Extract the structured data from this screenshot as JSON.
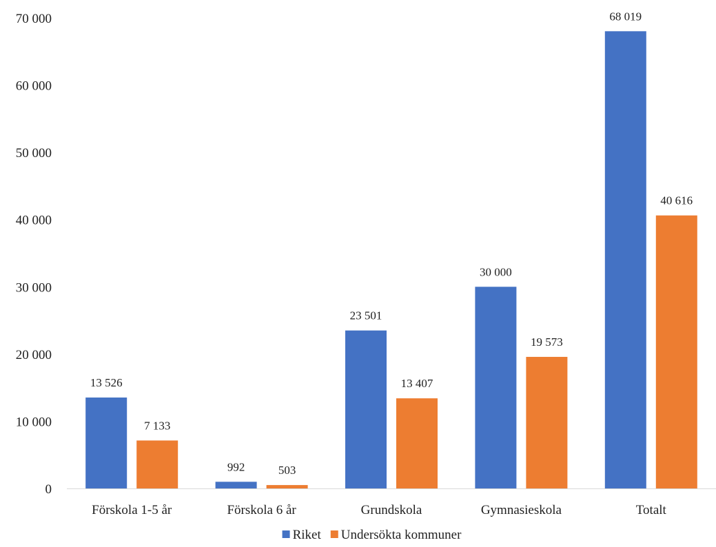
{
  "chart_data": {
    "type": "bar",
    "title": "",
    "xlabel": "",
    "ylabel": "",
    "categories": [
      "Förskola 1-5 år",
      "Förskola 6 år",
      "Grundskola",
      "Gymnasieskola",
      "Totalt"
    ],
    "series": [
      {
        "name": "Riket",
        "color": "#4472C4",
        "values": [
          13526,
          992,
          23501,
          30000,
          68019
        ],
        "labels": [
          "13 526",
          "992",
          "23 501",
          "30 000",
          "68 019"
        ]
      },
      {
        "name": "Undersökta kommuner",
        "color": "#ED7D31",
        "values": [
          7133,
          503,
          13407,
          19573,
          40616
        ],
        "labels": [
          "7 133",
          "503",
          "13 407",
          "19 573",
          "40 616"
        ]
      }
    ],
    "ylim": [
      0,
      70000
    ],
    "yticks": [
      0,
      10000,
      20000,
      30000,
      40000,
      50000,
      60000,
      70000
    ],
    "ytick_labels": [
      "0",
      "10 000",
      "20 000",
      "30 000",
      "40 000",
      "50 000",
      "60 000",
      "70 000"
    ],
    "grid": false,
    "legend": {
      "position": "bottom"
    }
  }
}
